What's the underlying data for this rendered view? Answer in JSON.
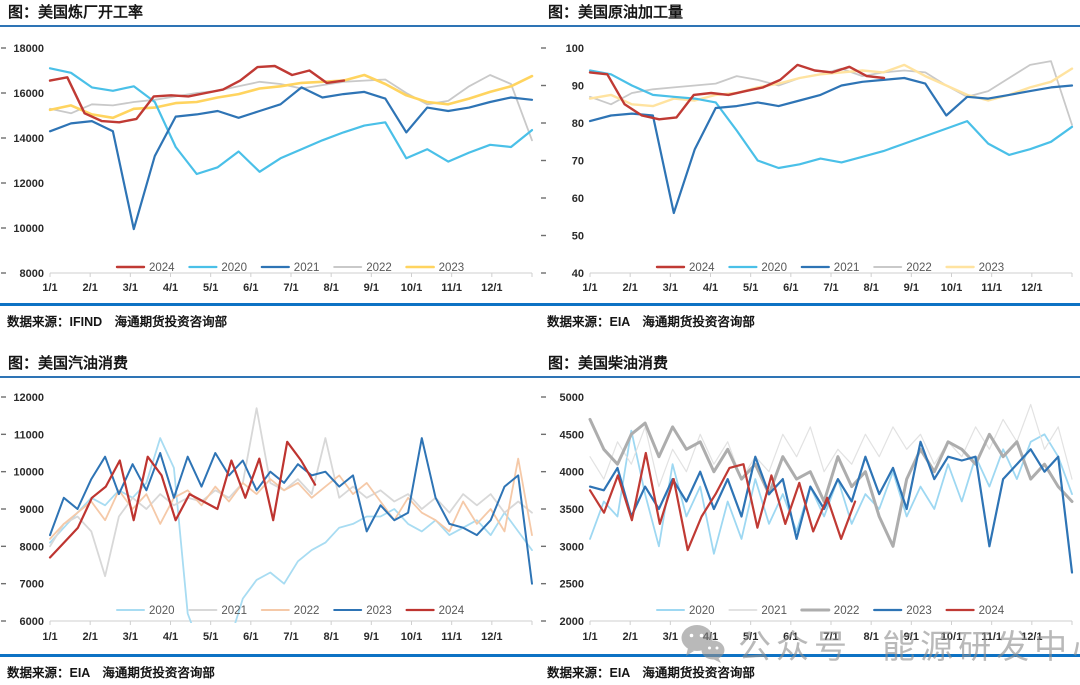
{
  "watermark": {
    "icon": "wechat-icon",
    "text": "公众号 能源研发中心"
  },
  "x_labels": [
    "1/1",
    "2/1",
    "3/1",
    "4/1",
    "5/1",
    "6/1",
    "7/1",
    "8/1",
    "9/1",
    "10/1",
    "11/1",
    "12/1"
  ],
  "charts": [
    {
      "source": "数据来源：IFIND　海通期货投资咨询部",
      "chart_data": {
        "type": "line",
        "title": "图：美国炼厂开工率",
        "ylim": [
          8000,
          18000
        ],
        "y_ticks": [
          "18000",
          "16000",
          "14000",
          "12000",
          "10000",
          "8000"
        ],
        "x_labels": [
          "1/1",
          "2/1",
          "3/1",
          "4/1",
          "5/1",
          "6/1",
          "7/1",
          "8/1",
          "9/1",
          "10/1",
          "11/1",
          "12/1"
        ],
        "grid": false,
        "legend_position": "bottom",
        "legend_order": [
          "2024",
          "2020",
          "2021",
          "2022",
          "2023"
        ],
        "draw_order": [
          "2022",
          "2023",
          "2020",
          "2021",
          "2024"
        ],
        "series": [
          {
            "name": "2024",
            "color": "#c03a34",
            "width": 2.4,
            "span": 0.61,
            "values": [
              16550,
              16700,
              15100,
              14750,
              14700,
              14850,
              15850,
              15900,
              15850,
              16000,
              16150,
              16550,
              17150,
              17200,
              16800,
              17000,
              16450,
              16550
            ]
          },
          {
            "name": "2020",
            "color": "#4ac0e8",
            "width": 2.2,
            "span": 1,
            "values": [
              17100,
              16900,
              16250,
              16100,
              16300,
              15600,
              13600,
              12400,
              12700,
              13400,
              12500,
              13100,
              13500,
              13900,
              14250,
              14550,
              14700,
              13100,
              13500,
              12950,
              13350,
              13700,
              13600,
              14350
            ]
          },
          {
            "name": "2021",
            "color": "#2e74b5",
            "width": 2.2,
            "span": 1,
            "values": [
              14300,
              14650,
              14750,
              14300,
              9950,
              13200,
              14950,
              15050,
              15200,
              14900,
              15200,
              15500,
              16250,
              15800,
              15950,
              16050,
              15750,
              14250,
              15350,
              15200,
              15350,
              15600,
              15800,
              15700
            ]
          },
          {
            "name": "2022",
            "color": "#c9c9c9",
            "width": 1.8,
            "span": 1,
            "values": [
              15300,
              15100,
              15500,
              15450,
              15600,
              15700,
              15850,
              16000,
              16100,
              16300,
              16500,
              16400,
              16200,
              16350,
              16500,
              16550,
              16600,
              16000,
              15500,
              15650,
              16300,
              16800,
              16400,
              13900
            ]
          },
          {
            "name": "2023",
            "color": "#ffd45f",
            "width": 2.6,
            "span": 1,
            "values": [
              15250,
              15450,
              15050,
              14900,
              15300,
              15350,
              15550,
              15600,
              15800,
              15950,
              16200,
              16300,
              16450,
              16500,
              16550,
              16800,
              16400,
              15900,
              15600,
              15500,
              15750,
              16050,
              16300,
              16750
            ]
          }
        ]
      }
    },
    {
      "source": "数据来源：EIA　海通期货投资咨询部",
      "chart_data": {
        "type": "line",
        "title": "图：美国原油加工量",
        "ylim": [
          40,
          100
        ],
        "y_ticks": [
          "100",
          "90",
          "80",
          "70",
          "60",
          "50",
          "40"
        ],
        "x_labels": [
          "1/1",
          "2/1",
          "3/1",
          "4/1",
          "5/1",
          "6/1",
          "7/1",
          "8/1",
          "9/1",
          "10/1",
          "11/1",
          "12/1"
        ],
        "grid": false,
        "legend_position": "bottom",
        "legend_order": [
          "2024",
          "2020",
          "2021",
          "2022",
          "2023"
        ],
        "draw_order": [
          "2022",
          "2023",
          "2020",
          "2021",
          "2024"
        ],
        "series": [
          {
            "name": "2024",
            "color": "#c03a34",
            "width": 2.4,
            "span": 0.61,
            "values": [
              93.5,
              93,
              85,
              82,
              81,
              81.5,
              87.5,
              88,
              87.5,
              88.5,
              89.5,
              91.5,
              95.5,
              94,
              93.5,
              95,
              92.5,
              92
            ]
          },
          {
            "name": "2020",
            "color": "#4ac0e8",
            "width": 2.2,
            "span": 1,
            "values": [
              94,
              93,
              90,
              87.5,
              87,
              86.5,
              85.5,
              78,
              70,
              68,
              69,
              70.5,
              69.5,
              71,
              72.5,
              74.5,
              76.5,
              78.5,
              80.5,
              74.5,
              71.5,
              73,
              75,
              79
            ]
          },
          {
            "name": "2021",
            "color": "#2e74b5",
            "width": 2.2,
            "span": 1,
            "values": [
              80.5,
              82,
              82.5,
              82,
              56,
              73,
              84,
              84.5,
              85.5,
              84.5,
              86,
              87.5,
              90,
              91,
              91.5,
              92,
              90.5,
              82,
              87,
              86.5,
              87.5,
              88.5,
              89.5,
              90
            ]
          },
          {
            "name": "2022",
            "color": "#c9c9c9",
            "width": 1.8,
            "span": 1,
            "values": [
              87,
              85,
              88,
              89,
              89.5,
              90,
              90.5,
              92.5,
              91.5,
              90,
              92,
              93,
              94.5,
              92.5,
              93.5,
              94,
              93.5,
              90,
              87,
              88.5,
              92,
              95.5,
              96.5,
              79.5
            ]
          },
          {
            "name": "2023",
            "color": "#ffe3a0",
            "width": 2.4,
            "span": 1,
            "values": [
              86.5,
              87.5,
              85,
              84.5,
              86.5,
              86,
              87.5,
              88,
              89.5,
              90.5,
              92,
              93,
              93.5,
              94,
              93.5,
              95.5,
              92.5,
              90,
              87.5,
              86,
              87.5,
              89.5,
              91,
              94.5
            ]
          }
        ]
      }
    },
    {
      "source": "数据来源：EIA　海通期货投资咨询部",
      "chart_data": {
        "type": "line",
        "title": "图：美国汽油消费",
        "ylim": [
          6000,
          12000
        ],
        "y_ticks": [
          "12000",
          "11000",
          "10000",
          "9000",
          "8000",
          "7000",
          "6000"
        ],
        "x_labels": [
          "1/1",
          "2/1",
          "3/1",
          "4/1",
          "5/1",
          "6/1",
          "7/1",
          "8/1",
          "9/1",
          "10/1",
          "11/1",
          "12/1"
        ],
        "grid": false,
        "legend_position": "bottom",
        "legend_order": [
          "2020",
          "2021",
          "2022",
          "2023",
          "2024"
        ],
        "draw_order": [
          "2020",
          "2021",
          "2022",
          "2023",
          "2024"
        ],
        "series": [
          {
            "name": "2020",
            "color": "#a8dcf2",
            "width": 1.8,
            "span": 1,
            "values": [
              8100,
              8500,
              8900,
              9300,
              9100,
              9500,
              9300,
              9700,
              10900,
              10100,
              6200,
              5200,
              5100,
              5400,
              6600,
              7100,
              7300,
              7000,
              7600,
              7900,
              8100,
              8500,
              8600,
              8800,
              8800,
              9000,
              8600,
              8400,
              8700,
              8300,
              8500,
              8700,
              8300,
              8900,
              8400,
              7900
            ]
          },
          {
            "name": "2021",
            "color": "#d8d8d8",
            "width": 1.8,
            "span": 1,
            "values": [
              8000,
              8600,
              8800,
              8400,
              7200,
              8800,
              9300,
              9000,
              9400,
              9100,
              9300,
              9200,
              9500,
              9300,
              9700,
              11700,
              9700,
              9500,
              9800,
              9400,
              10900,
              9300,
              9600,
              9300,
              9500,
              9200,
              9400,
              9000,
              9300,
              8900,
              9400,
              9100,
              9400,
              8900,
              9200,
              8900
            ]
          },
          {
            "name": "2022",
            "color": "#f5c9a8",
            "width": 1.8,
            "span": 1,
            "values": [
              8200,
              8600,
              8900,
              9200,
              8700,
              9500,
              9000,
              9400,
              8600,
              9300,
              9500,
              9100,
              9600,
              9200,
              9700,
              9400,
              9800,
              9500,
              9700,
              9300,
              9600,
              9900,
              9400,
              9700,
              9200,
              8700,
              9300,
              8900,
              8700,
              8400,
              9200,
              8600,
              9000,
              8400,
              10350,
              8300
            ]
          },
          {
            "name": "2023",
            "color": "#2e74b5",
            "width": 2,
            "span": 1,
            "values": [
              8300,
              9300,
              9000,
              9800,
              10400,
              9400,
              10200,
              9500,
              10500,
              9300,
              10400,
              9600,
              10500,
              9900,
              10300,
              9500,
              10000,
              9700,
              10200,
              9900,
              10000,
              9600,
              9900,
              8400,
              9100,
              8700,
              8900,
              10900,
              9300,
              8600,
              8500,
              8300,
              8700,
              9600,
              9900,
              7000
            ]
          },
          {
            "name": "2024",
            "color": "#be3430",
            "width": 2.2,
            "span": 0.55,
            "values": [
              7700,
              8100,
              8500,
              9300,
              9600,
              10300,
              8700,
              10400,
              9900,
              8700,
              9400,
              9200,
              9000,
              10300,
              9300,
              10350,
              8700,
              10800,
              10300,
              9650
            ]
          }
        ]
      }
    },
    {
      "source": "数据来源：EIA　海通期货投资咨询部",
      "chart_data": {
        "type": "line",
        "title": "图：美国柴油消费",
        "ylim": [
          2000,
          5000
        ],
        "y_ticks": [
          "5000",
          "4500",
          "4000",
          "3500",
          "3000",
          "2500",
          "2000"
        ],
        "x_labels": [
          "1/1",
          "2/1",
          "3/1",
          "4/1",
          "5/1",
          "6/1",
          "7/1",
          "8/1",
          "9/1",
          "10/1",
          "11/1",
          "12/1"
        ],
        "grid": false,
        "legend_position": "bottom",
        "legend_order": [
          "2020",
          "2021",
          "2022",
          "2023",
          "2024"
        ],
        "draw_order": [
          "2020",
          "2021",
          "2022",
          "2023",
          "2024"
        ],
        "series": [
          {
            "name": "2020",
            "color": "#9ed8f2",
            "width": 1.8,
            "span": 1,
            "values": [
              3100,
              3600,
              3400,
              4550,
              3700,
              3000,
              4100,
              3400,
              3800,
              2900,
              3600,
              3100,
              3900,
              3300,
              3700,
              3200,
              3800,
              3400,
              3900,
              3300,
              3700,
              3500,
              4000,
              3400,
              3800,
              3500,
              4100,
              3600,
              4200,
              3800,
              4300,
              3900,
              4400,
              4500,
              4200,
              3700
            ]
          },
          {
            "name": "2021",
            "color": "#e2e2e2",
            "width": 1.2,
            "span": 1,
            "values": [
              4200,
              3900,
              4400,
              4100,
              4600,
              3800,
              4300,
              4000,
              4500,
              4100,
              4400,
              3900,
              4200,
              4000,
              4500,
              4200,
              4600,
              4000,
              4300,
              4100,
              4500,
              4200,
              4600,
              4300,
              4500,
              4100,
              4400,
              4200,
              4600,
              4300,
              4700,
              4400,
              4900,
              4300,
              4600,
              3900
            ]
          },
          {
            "name": "2022",
            "color": "#adadad",
            "width": 3,
            "span": 1,
            "values": [
              4700,
              4300,
              4100,
              4500,
              4650,
              4200,
              4600,
              4300,
              4400,
              4000,
              4300,
              3900,
              4100,
              3700,
              4200,
              3900,
              4000,
              3600,
              4200,
              3800,
              4000,
              3400,
              3000,
              3900,
              4300,
              4000,
              4400,
              4300,
              4100,
              4500,
              4200,
              4400,
              3900,
              4100,
              3800,
              3600
            ]
          },
          {
            "name": "2023",
            "color": "#2e74b5",
            "width": 2.2,
            "span": 1,
            "values": [
              3800,
              3750,
              4050,
              3400,
              3800,
              3500,
              3900,
              3600,
              4000,
              3500,
              3900,
              3400,
              4200,
              3700,
              3900,
              3100,
              3800,
              3500,
              3900,
              3600,
              4200,
              3700,
              4050,
              3500,
              4400,
              3900,
              4200,
              4150,
              4200,
              3000,
              3900,
              4100,
              4300,
              4000,
              4200,
              2650
            ]
          },
          {
            "name": "2024",
            "color": "#c03a34",
            "width": 2.2,
            "span": 0.55,
            "values": [
              3750,
              3450,
              3950,
              3350,
              4250,
              3300,
              3900,
              2950,
              3400,
              3700,
              4050,
              4100,
              3250,
              3950,
              3300,
              3850,
              3200,
              3650,
              3100,
              3600
            ]
          }
        ]
      }
    }
  ]
}
